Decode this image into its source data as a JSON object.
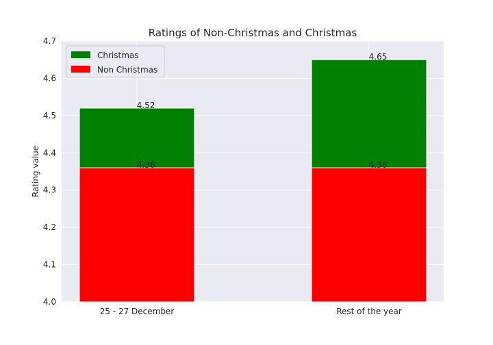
{
  "chart_data": {
    "type": "bar",
    "stacked": false,
    "title": "Ratings of Non-Christmas and Christmas",
    "xlabel": "",
    "ylabel": "Rating value",
    "categories": [
      "25 - 27 December",
      "Rest of the year"
    ],
    "series": [
      {
        "name": "Christmas",
        "values": [
          4.52,
          4.65
        ],
        "color": "#008000"
      },
      {
        "name": "Non Christmas",
        "values": [
          4.36,
          4.36
        ],
        "color": "#ff0000"
      }
    ],
    "data_labels": {
      "Christmas": [
        "4.52",
        "4.65"
      ],
      "Non Christmas": [
        "4.36",
        "4.36"
      ]
    },
    "ylim": [
      4.0,
      4.7
    ],
    "yticks": [
      "4.0",
      "4.1",
      "4.2",
      "4.3",
      "4.4",
      "4.5",
      "4.6",
      "4.7"
    ],
    "grid": true,
    "legend_position": "top-left",
    "style": {
      "background": "#eaeaf2",
      "grid_color": "#ffffff"
    }
  }
}
